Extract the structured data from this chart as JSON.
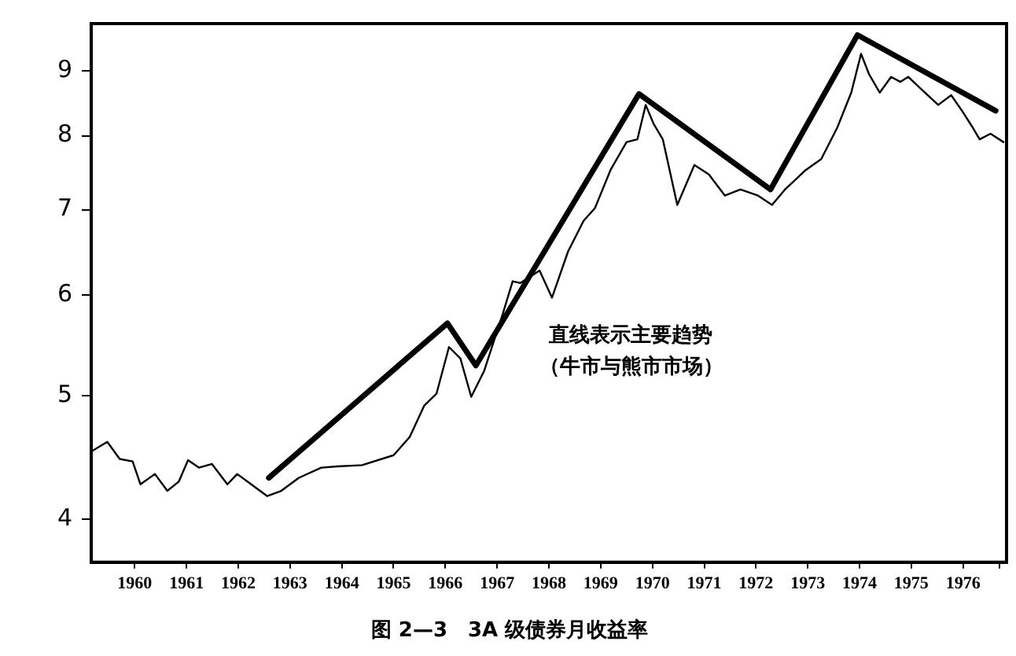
{
  "chart_data": {
    "type": "line",
    "title": "图 2—3　3A 级债券月收益率",
    "annotations": [
      "直线表示主要趋势",
      "（牛市与熊市市场）"
    ],
    "series": [
      {
        "color": "#000000",
        "x": [
          1959.66,
          1959.97,
          1960.21,
          1960.46,
          1960.61,
          1960.89,
          1961.13,
          1961.35,
          1961.53,
          1961.74,
          1961.99,
          1962.29,
          1962.48,
          1962.75,
          1963.06,
          1963.33,
          1963.67,
          1964.1,
          1964.4,
          1964.89,
          1965.5,
          1965.81,
          1966.09,
          1966.33,
          1966.57,
          1966.79,
          1967.0,
          1967.25,
          1967.61,
          1967.8,
          1967.95,
          1968.32,
          1968.56,
          1968.87,
          1969.17,
          1969.39,
          1969.69,
          1970.0,
          1970.21,
          1970.37,
          1970.52,
          1970.7,
          1970.98,
          1971.31,
          1971.59,
          1971.9,
          1972.2,
          1972.54,
          1972.81,
          1973.06,
          1973.46,
          1973.76,
          1974.07,
          1974.34,
          1974.53,
          1974.68,
          1974.89,
          1975.11,
          1975.29,
          1975.44,
          1975.66,
          1976.02,
          1976.27,
          1976.48,
          1976.67,
          1976.82,
          1977.03,
          1977.28
        ],
        "values": [
          4.52,
          4.6,
          4.46,
          4.44,
          4.26,
          4.34,
          4.21,
          4.28,
          4.45,
          4.39,
          4.42,
          4.26,
          4.34,
          4.26,
          4.17,
          4.21,
          4.31,
          4.39,
          4.4,
          4.41,
          4.49,
          4.64,
          4.91,
          5.02,
          5.46,
          5.35,
          4.99,
          5.23,
          5.8,
          6.15,
          6.13,
          6.27,
          5.97,
          6.49,
          6.86,
          7.02,
          7.52,
          7.91,
          7.95,
          8.46,
          8.18,
          7.95,
          7.06,
          7.59,
          7.46,
          7.18,
          7.26,
          7.18,
          7.06,
          7.26,
          7.52,
          7.67,
          8.12,
          8.65,
          9.28,
          8.95,
          8.65,
          8.9,
          8.82,
          8.9,
          8.73,
          8.46,
          8.61,
          8.37,
          8.14,
          7.95,
          8.03,
          7.91
        ]
      },
      {
        "color": "#000000",
        "x": [
          1963.09,
          1966.54,
          1967.09,
          1970.24,
          1972.78,
          1974.46,
          1977.13
        ],
        "values": [
          4.31,
          5.7,
          5.28,
          8.63,
          7.26,
          9.6,
          8.37
        ]
      }
    ],
    "xlim": [
      1959.66,
      1977.34
    ],
    "xticks": [
      {
        "value": 1960.5,
        "label": "1960"
      },
      {
        "value": 1961.5,
        "label": "1961"
      },
      {
        "value": 1962.5,
        "label": "1962"
      },
      {
        "value": 1963.5,
        "label": "1963"
      },
      {
        "value": 1964.5,
        "label": "1964"
      },
      {
        "value": 1965.5,
        "label": "1965"
      },
      {
        "value": 1966.5,
        "label": "1966"
      },
      {
        "value": 1967.5,
        "label": "1967"
      },
      {
        "value": 1968.5,
        "label": "1968"
      },
      {
        "value": 1969.5,
        "label": "1969"
      },
      {
        "value": 1970.5,
        "label": "1970"
      },
      {
        "value": 1971.5,
        "label": "1971"
      },
      {
        "value": 1972.5,
        "label": "1972"
      },
      {
        "value": 1973.5,
        "label": "1973"
      },
      {
        "value": 1974.5,
        "label": "1974"
      },
      {
        "value": 1975.5,
        "label": "1975"
      },
      {
        "value": 1976.5,
        "label": "1976"
      },
      {
        "value": 1977.2,
        "label": null
      }
    ],
    "ylim": [
      3.7,
      9.8
    ],
    "yticks": [
      4,
      5,
      6,
      7,
      8,
      9
    ],
    "log": "y",
    "grid": false,
    "legend": false,
    "marker": "none",
    "line_style": "solid"
  }
}
